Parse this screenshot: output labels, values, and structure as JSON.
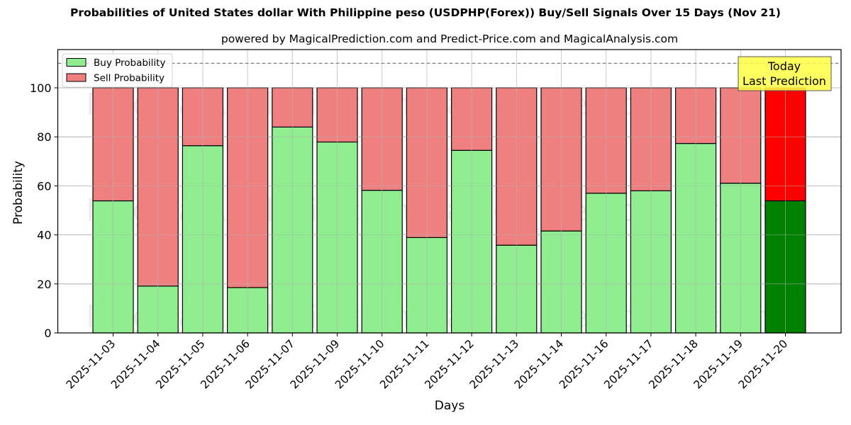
{
  "header": {
    "title": "Probabilities of United States dollar With Philippine peso (USDPHP(Forex)) Buy/Sell Signals Over 15 Days (Nov 21)",
    "subtitle": "powered by MagicalPrediction.com and Predict-Price.com and MagicalAnalysis.com"
  },
  "legend": {
    "buy_label": "Buy Probability",
    "sell_label": "Sell Probability"
  },
  "annotation": {
    "line1": "Today",
    "line2": "Last Prediction"
  },
  "watermarks": [
    "MagicalAnalysis.com",
    "MagicalPrediction.com"
  ],
  "colors": {
    "buy": "#90ee90",
    "sell": "#f08080",
    "buy_today": "#008000",
    "sell_today": "#ff0000",
    "annotation_bg": "#ffff44",
    "grid": "#b0b0b0",
    "dashed_line": "#808080"
  },
  "chart_data": {
    "type": "bar",
    "stacked": true,
    "title": "Probabilities of United States dollar With Philippine peso (USDPHP(Forex)) Buy/Sell Signals Over 15 Days (Nov 21)",
    "subtitle": "powered by MagicalPrediction.com and Predict-Price.com and MagicalAnalysis.com",
    "xlabel": "Days",
    "ylabel": "Probability",
    "ylim": [
      0,
      115
    ],
    "yticks": [
      0,
      20,
      40,
      60,
      80,
      100
    ],
    "grid": true,
    "legend_position": "upper left",
    "reference_line": {
      "y": 110,
      "style": "dashed"
    },
    "categories": [
      "2025-11-03",
      "2025-11-04",
      "2025-11-05",
      "2025-11-06",
      "2025-11-07",
      "2025-11-09",
      "2025-11-10",
      "2025-11-11",
      "2025-11-12",
      "2025-11-13",
      "2025-11-14",
      "2025-11-16",
      "2025-11-17",
      "2025-11-18",
      "2025-11-19",
      "2025-11-20"
    ],
    "series": [
      {
        "name": "Buy Probability",
        "values": [
          53.9,
          19.1,
          76.4,
          18.5,
          84.0,
          77.9,
          58.2,
          38.9,
          74.5,
          35.8,
          41.6,
          57.0,
          58.0,
          77.3,
          61.1,
          53.9
        ]
      },
      {
        "name": "Sell Probability",
        "values": [
          46.1,
          80.9,
          23.6,
          81.5,
          16.0,
          22.1,
          41.8,
          61.1,
          25.5,
          64.2,
          58.4,
          43.0,
          42.0,
          22.7,
          38.9,
          46.1
        ]
      }
    ],
    "highlight": {
      "index": 15,
      "label": "Today\nLast Prediction"
    }
  }
}
